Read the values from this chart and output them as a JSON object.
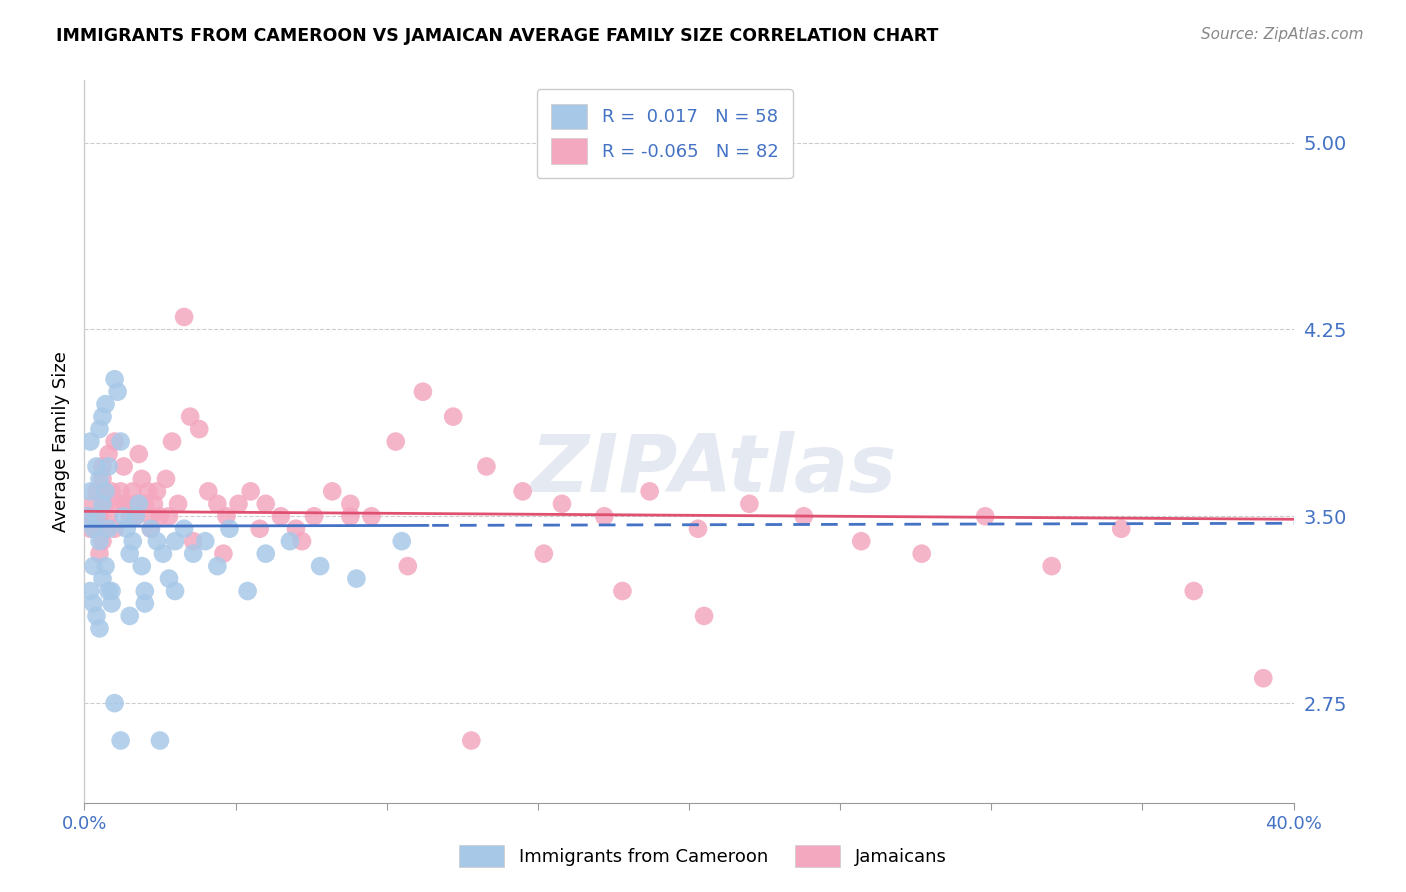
{
  "title": "IMMIGRANTS FROM CAMEROON VS JAMAICAN AVERAGE FAMILY SIZE CORRELATION CHART",
  "source": "Source: ZipAtlas.com",
  "ylabel": "Average Family Size",
  "yticks": [
    2.75,
    3.5,
    4.25,
    5.0
  ],
  "ytick_labels": [
    "2.75",
    "3.50",
    "4.25",
    "5.00"
  ],
  "xticks": [
    0.0,
    0.05,
    0.1,
    0.15,
    0.2,
    0.25,
    0.3,
    0.35,
    0.4
  ],
  "xlim": [
    0.0,
    0.4
  ],
  "ylim": [
    2.35,
    5.25
  ],
  "legend_r_labels": [
    "R =  0.017   N = 58",
    "R = -0.065   N = 82"
  ],
  "legend_labels": [
    "Immigrants from Cameroon",
    "Jamaicans"
  ],
  "cameroon_x": [
    0.001,
    0.002,
    0.002,
    0.003,
    0.003,
    0.004,
    0.004,
    0.005,
    0.005,
    0.005,
    0.006,
    0.006,
    0.007,
    0.007,
    0.008,
    0.008,
    0.009,
    0.009,
    0.01,
    0.011,
    0.012,
    0.013,
    0.014,
    0.015,
    0.016,
    0.017,
    0.018,
    0.019,
    0.02,
    0.022,
    0.024,
    0.026,
    0.028,
    0.03,
    0.033,
    0.036,
    0.04,
    0.044,
    0.048,
    0.054,
    0.06,
    0.068,
    0.078,
    0.09,
    0.105,
    0.002,
    0.003,
    0.004,
    0.005,
    0.006,
    0.007,
    0.008,
    0.01,
    0.012,
    0.015,
    0.02,
    0.025,
    0.03
  ],
  "cameroon_y": [
    3.5,
    3.8,
    3.6,
    3.45,
    3.3,
    3.7,
    3.5,
    3.85,
    3.65,
    3.4,
    3.9,
    3.55,
    3.95,
    3.6,
    3.7,
    3.45,
    3.2,
    3.15,
    4.05,
    4.0,
    3.8,
    3.5,
    3.45,
    3.35,
    3.4,
    3.5,
    3.55,
    3.3,
    3.2,
    3.45,
    3.4,
    3.35,
    3.25,
    3.4,
    3.45,
    3.35,
    3.4,
    3.3,
    3.45,
    3.2,
    3.35,
    3.4,
    3.3,
    3.25,
    3.4,
    3.2,
    3.15,
    3.1,
    3.05,
    3.25,
    3.3,
    3.2,
    2.75,
    2.6,
    3.1,
    3.15,
    2.6,
    3.2
  ],
  "jamaican_x": [
    0.001,
    0.002,
    0.003,
    0.004,
    0.005,
    0.005,
    0.006,
    0.006,
    0.007,
    0.008,
    0.009,
    0.01,
    0.011,
    0.012,
    0.013,
    0.014,
    0.015,
    0.016,
    0.017,
    0.018,
    0.019,
    0.02,
    0.021,
    0.022,
    0.023,
    0.024,
    0.025,
    0.027,
    0.029,
    0.031,
    0.033,
    0.035,
    0.038,
    0.041,
    0.044,
    0.047,
    0.051,
    0.055,
    0.06,
    0.065,
    0.07,
    0.076,
    0.082,
    0.088,
    0.095,
    0.103,
    0.112,
    0.122,
    0.133,
    0.145,
    0.158,
    0.172,
    0.187,
    0.203,
    0.22,
    0.238,
    0.257,
    0.277,
    0.298,
    0.32,
    0.343,
    0.367,
    0.39,
    0.003,
    0.004,
    0.006,
    0.008,
    0.01,
    0.013,
    0.017,
    0.022,
    0.028,
    0.036,
    0.046,
    0.058,
    0.072,
    0.088,
    0.107,
    0.128,
    0.152,
    0.178,
    0.205
  ],
  "jamaican_y": [
    3.5,
    3.45,
    3.55,
    3.6,
    3.5,
    3.35,
    3.7,
    3.65,
    3.55,
    3.75,
    3.6,
    3.8,
    3.55,
    3.6,
    3.7,
    3.55,
    3.5,
    3.6,
    3.55,
    3.75,
    3.65,
    3.55,
    3.6,
    3.5,
    3.55,
    3.6,
    3.5,
    3.65,
    3.8,
    3.55,
    4.3,
    3.9,
    3.85,
    3.6,
    3.55,
    3.5,
    3.55,
    3.6,
    3.55,
    3.5,
    3.45,
    3.5,
    3.6,
    3.55,
    3.5,
    3.8,
    4.0,
    3.9,
    3.7,
    3.6,
    3.55,
    3.5,
    3.6,
    3.45,
    3.55,
    3.5,
    3.4,
    3.35,
    3.5,
    3.3,
    3.45,
    3.2,
    2.85,
    3.5,
    3.45,
    3.4,
    3.5,
    3.45,
    3.55,
    3.5,
    3.45,
    3.5,
    3.4,
    3.35,
    3.45,
    3.4,
    3.5,
    3.3,
    2.6,
    3.35,
    3.2,
    3.1
  ],
  "cameroon_color": "#a8c8e8",
  "jamaican_color": "#f4a8c0",
  "cameroon_line_color": "#4472c4",
  "jamaican_line_color": "#e05070",
  "grid_color": "#cccccc",
  "ytick_color": "#4472c4",
  "background_color": "#ffffff",
  "cam_line_start": 0.0,
  "cam_line_solid_end": 0.115,
  "cam_line_end": 0.4,
  "cam_intercept": 3.46,
  "cam_slope": 0.03,
  "jam_intercept": 3.52,
  "jam_slope": -0.08
}
